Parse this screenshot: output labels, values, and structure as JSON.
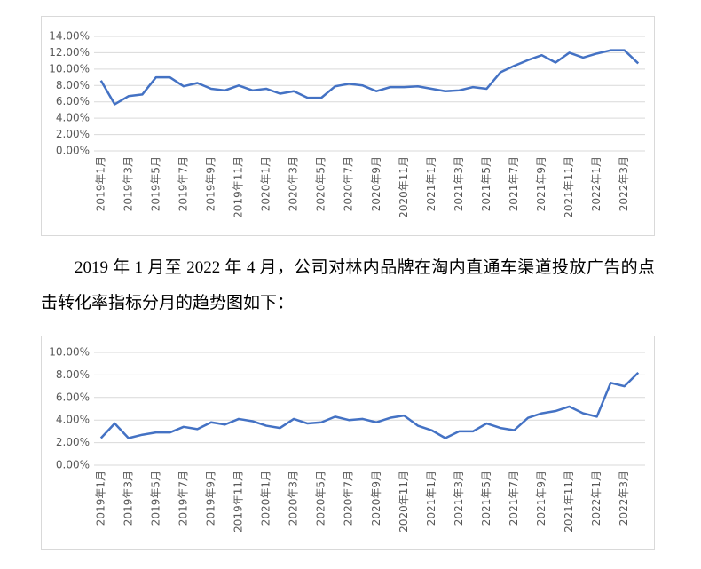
{
  "chart_data": [
    {
      "type": "line",
      "categories": [
        "2019年1月",
        null,
        "2019年3月",
        null,
        "2019年5月",
        null,
        "2019年7月",
        null,
        "2019年9月",
        null,
        "2019年11月",
        null,
        "2020年1月",
        null,
        "2020年3月",
        null,
        "2020年5月",
        null,
        "2020年7月",
        null,
        "2020年9月",
        null,
        "2020年11月",
        null,
        "2021年1月",
        null,
        "2021年3月",
        null,
        "2021年5月",
        null,
        "2021年7月",
        null,
        "2021年9月",
        null,
        "2021年11月",
        null,
        "2022年1月",
        null,
        "2022年3月",
        null
      ],
      "values": [
        8.6,
        5.7,
        6.7,
        6.9,
        9.0,
        9.0,
        7.9,
        8.3,
        7.6,
        7.4,
        8.0,
        7.4,
        7.6,
        7.0,
        7.3,
        6.5,
        6.5,
        7.9,
        8.2,
        8.0,
        7.3,
        7.8,
        7.8,
        7.9,
        7.6,
        7.3,
        7.4,
        7.8,
        7.6,
        9.6,
        10.4,
        11.1,
        11.7,
        10.8,
        12.0,
        11.4,
        11.9,
        12.3,
        12.3,
        10.7
      ],
      "color": "#4472c4",
      "ylim": [
        0,
        14
      ],
      "yticks": [
        {
          "value": 0,
          "label": "0.00%"
        },
        {
          "value": 2,
          "label": "2.00%"
        },
        {
          "value": 4,
          "label": "4.00%"
        },
        {
          "value": 6,
          "label": "6.00%"
        },
        {
          "value": 8,
          "label": "8.00%"
        },
        {
          "value": 10,
          "label": "10.00%"
        },
        {
          "value": 12,
          "label": "12.00%"
        },
        {
          "value": 14,
          "label": "14.00%"
        }
      ],
      "grid": true
    },
    {
      "type": "line",
      "categories": [
        "2019年1月",
        null,
        "2019年3月",
        null,
        "2019年5月",
        null,
        "2019年7月",
        null,
        "2019年9月",
        null,
        "2019年11月",
        null,
        "2020年1月",
        null,
        "2020年3月",
        null,
        "2020年5月",
        null,
        "2020年7月",
        null,
        "2020年9月",
        null,
        "2020年11月",
        null,
        "2021年1月",
        null,
        "2021年3月",
        null,
        "2021年5月",
        null,
        "2021年7月",
        null,
        "2021年9月",
        null,
        "2021年11月",
        null,
        "2022年1月",
        null,
        "2022年3月",
        null
      ],
      "values": [
        2.4,
        3.7,
        2.4,
        2.7,
        2.9,
        2.9,
        3.4,
        3.2,
        3.8,
        3.6,
        4.1,
        3.9,
        3.5,
        3.3,
        4.1,
        3.7,
        3.8,
        4.3,
        4.0,
        4.1,
        3.8,
        4.2,
        4.4,
        3.5,
        3.1,
        2.4,
        3.0,
        3.0,
        3.7,
        3.3,
        3.1,
        4.2,
        4.6,
        4.8,
        5.2,
        4.6,
        4.3,
        7.3,
        7.0,
        8.2
      ],
      "color": "#4472c4",
      "ylim": [
        0,
        10
      ],
      "yticks": [
        {
          "value": 0,
          "label": "0.00%"
        },
        {
          "value": 2,
          "label": "2.00%"
        },
        {
          "value": 4,
          "label": "4.00%"
        },
        {
          "value": 6,
          "label": "6.00%"
        },
        {
          "value": 8,
          "label": "8.00%"
        },
        {
          "value": 10,
          "label": "10.00%"
        }
      ],
      "grid": true
    }
  ],
  "paragraph": "2019 年 1 月至 2022 年 4 月，公司对林内品牌在淘内直通车渠道投放广告的点击转化率指标分月的趋势图如下："
}
